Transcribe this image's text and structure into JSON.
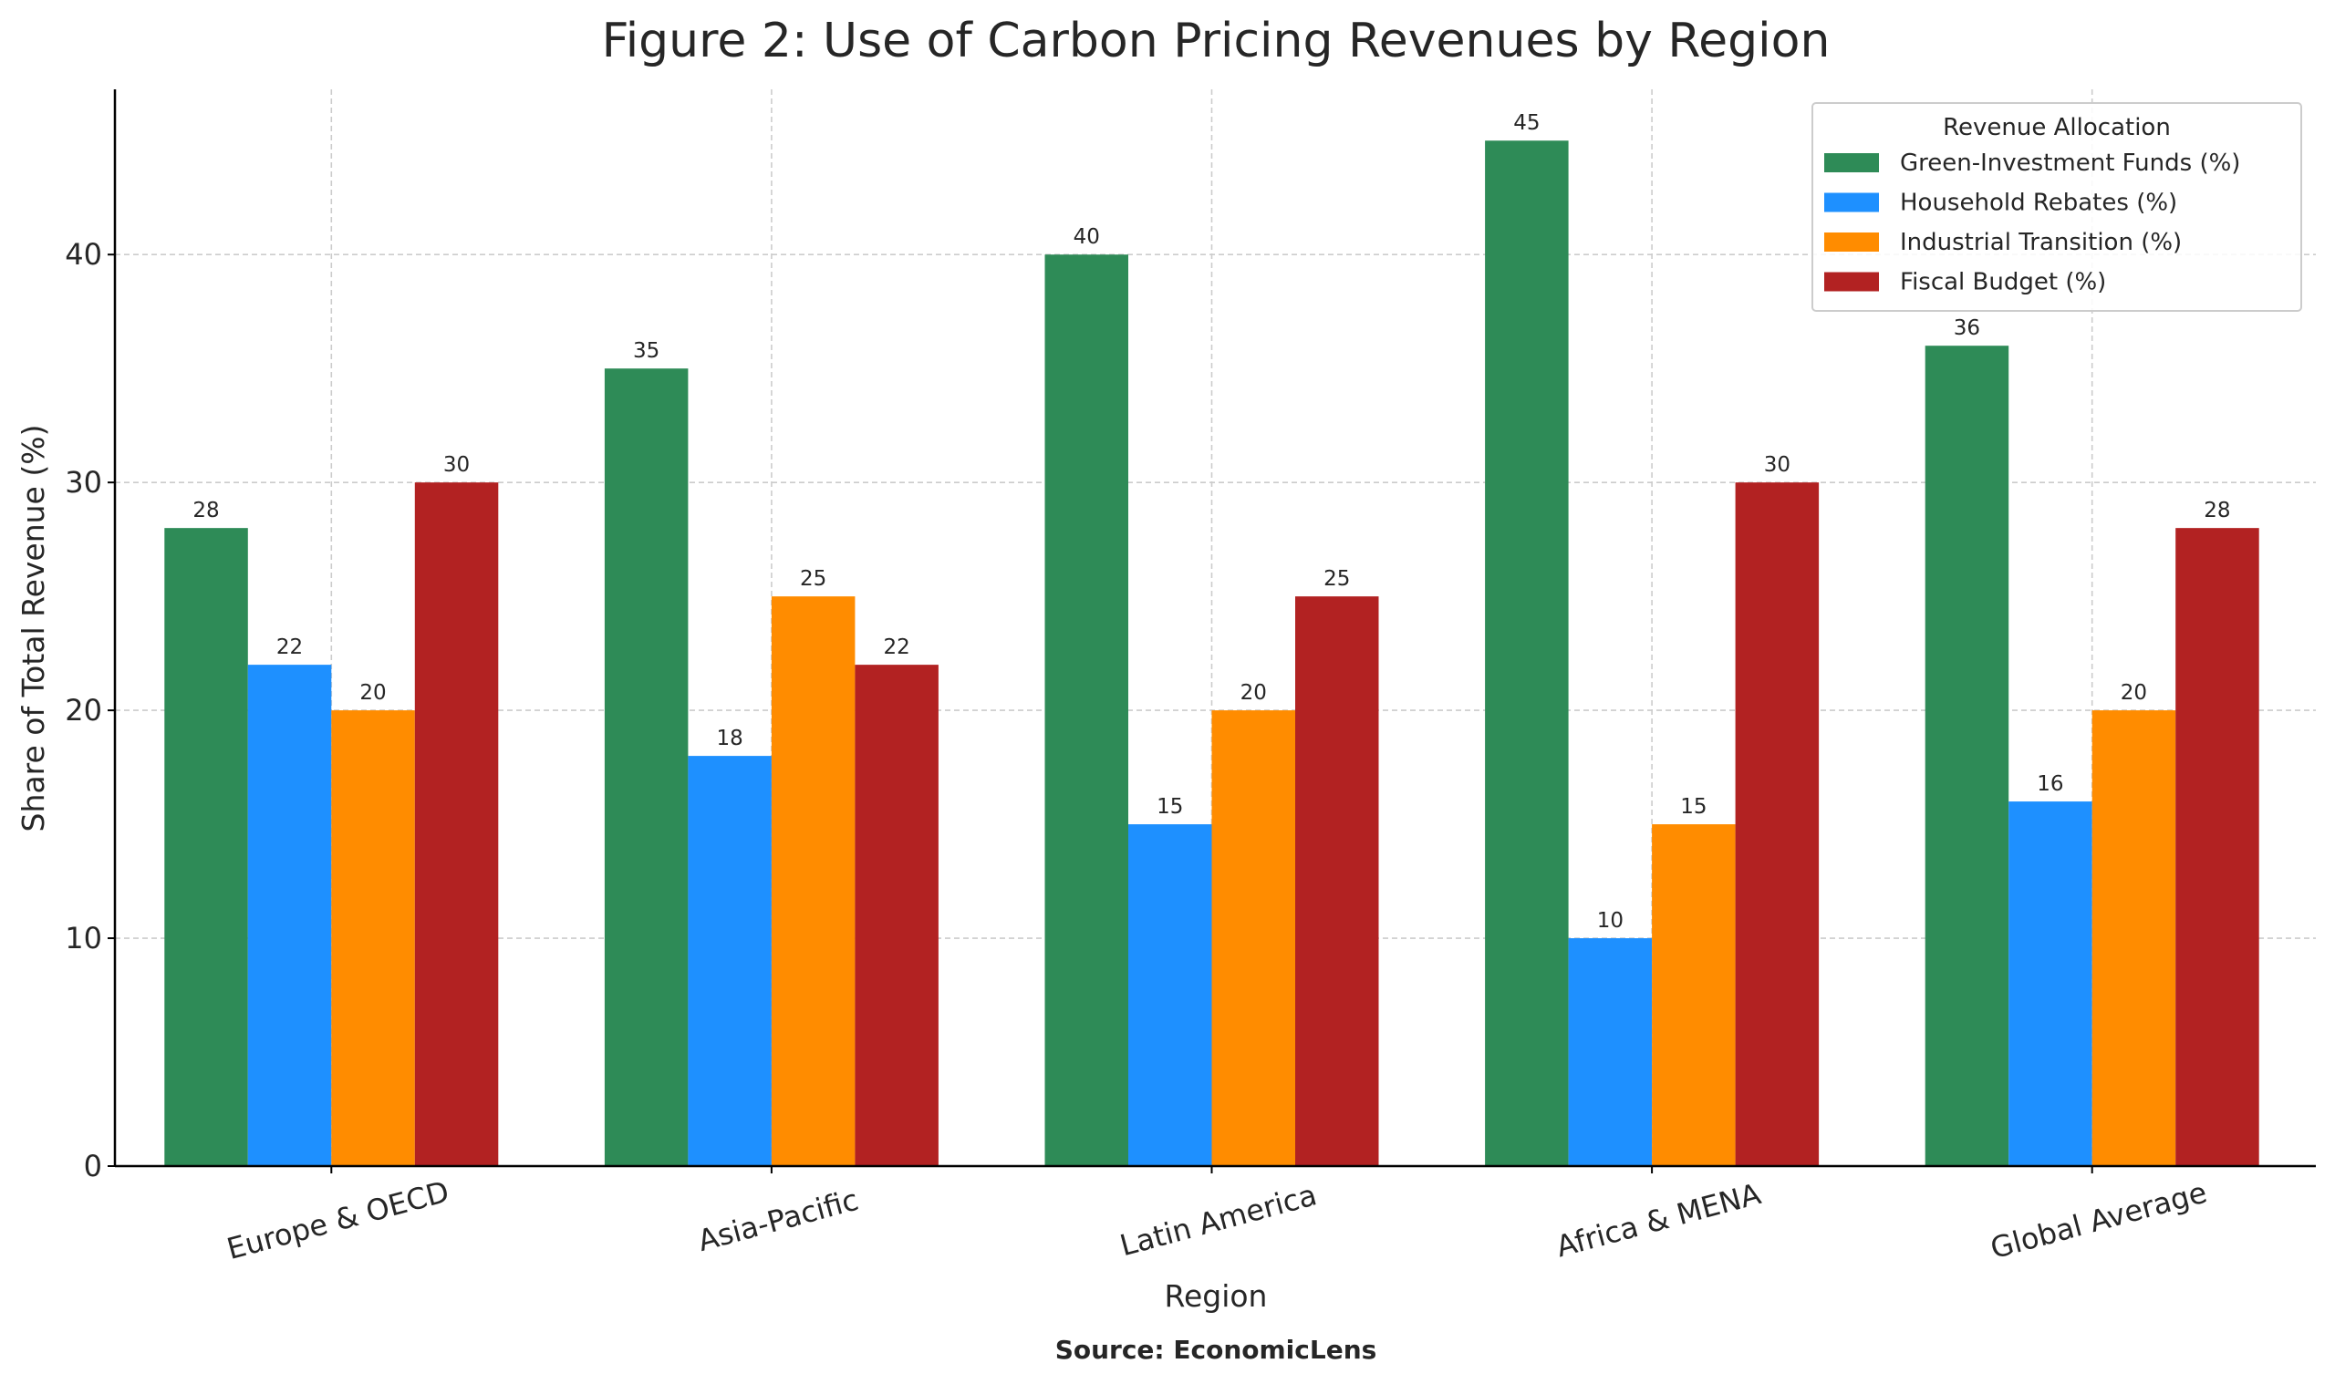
{
  "chart_data": {
    "type": "bar",
    "title": "Figure 2: Use of Carbon Pricing Revenues by Region",
    "xlabel": "Region",
    "ylabel": "Share of Total Revenue (%)",
    "source": "Source: EconomicLens",
    "categories": [
      "Europe & OECD",
      "Asia-Pacific",
      "Latin America",
      "Africa & MENA",
      "Global Average"
    ],
    "series": [
      {
        "name": "Green-Investment Funds (%)",
        "color": "#2e8b57",
        "values": [
          28,
          35,
          40,
          45,
          36
        ]
      },
      {
        "name": "Household Rebates (%)",
        "color": "#1e90ff",
        "values": [
          22,
          18,
          15,
          10,
          16
        ]
      },
      {
        "name": "Industrial Transition (%)",
        "color": "#ff8c00",
        "values": [
          20,
          25,
          20,
          15,
          20
        ]
      },
      {
        "name": "Fiscal Budget (%)",
        "color": "#b22222",
        "values": [
          30,
          22,
          25,
          30,
          28
        ]
      }
    ],
    "legend": {
      "title": "Revenue Allocation",
      "placement": "top-right"
    },
    "yticks": [
      0,
      10,
      20,
      30,
      40
    ],
    "ylim": [
      0,
      47.25
    ],
    "grid": true
  }
}
